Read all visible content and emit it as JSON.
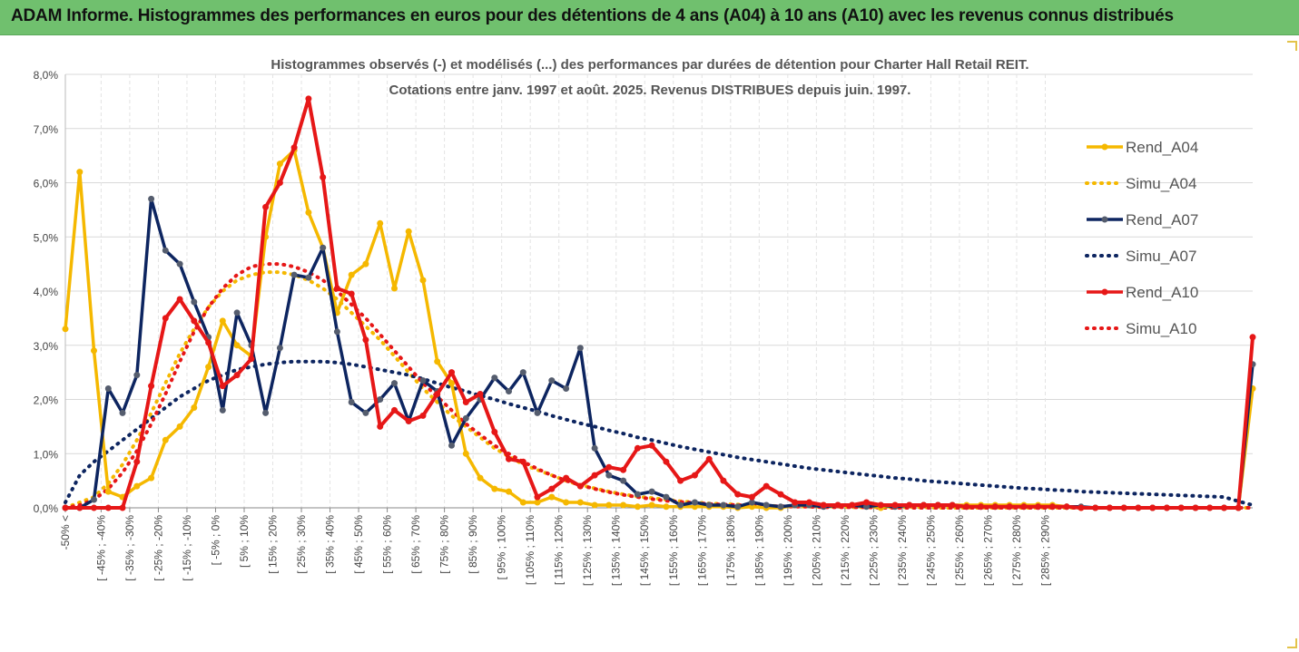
{
  "banner": {
    "title": "ADAM Informe. Histogrammes des performances en euros pour des détentions de 4 ans (A04) à 10 ans (A10) avec les revenus connus distribués",
    "color": "#70c06e"
  },
  "chart_data": {
    "type": "line",
    "title": "Histogrammes observés (-) et modélisés (...) des performances par durées de détention pour Charter Hall Retail REIT.",
    "subtitle": "Cotations entre janv. 1997 et août. 2025. Revenus DISTRIBUES depuis juin. 1997.",
    "ylim": [
      0,
      8
    ],
    "yticks": [
      "0,0%",
      "1,0%",
      "2,0%",
      "3,0%",
      "4,0%",
      "5,0%",
      "6,0%",
      "7,0%",
      "8,0%"
    ],
    "xtick_labels": [
      "-50% <",
      "[ -45% ; -40%",
      "[ -35% ; -30%",
      "[ -25% ; -20%",
      "[ -15% ; -10%",
      "[ -5% ; 0%",
      "[ 5% ; 10%",
      "[ 15% ; 20%",
      "[ 25% ; 30%",
      "[ 35% ; 40%",
      "[ 45% ; 50%",
      "[ 55% ; 60%",
      "[ 65% ; 70%",
      "[ 75% ; 80%",
      "[ 85% ; 90%",
      "[ 95% ; 100%",
      "[ 105% ; 110%",
      "[ 115% ; 120%",
      "[ 125% ; 130%",
      "[ 135% ; 140%",
      "[ 145% ; 150%",
      "[ 155% ; 160%",
      "[ 165% ; 170%",
      "[ 175% ; 180%",
      "[ 185% ; 190%",
      "[ 195% ; 200%",
      "[ 205% ; 210%",
      "[ 215% ; 220%",
      "[ 225% ; 230%",
      "[ 235% ; 240%",
      "[ 245% ; 250%",
      "[ 255% ; 260%",
      "[ 265% ; 270%",
      "[ 275% ; 280%",
      "[ 285% ; 290%"
    ],
    "grid": true,
    "legend_position": "right",
    "series": [
      {
        "name": "Rend_A04",
        "style": "solid",
        "color": "#f5b800",
        "values": [
          3.3,
          6.2,
          2.9,
          0.3,
          0.2,
          0.4,
          0.55,
          1.25,
          1.5,
          1.85,
          2.6,
          3.45,
          3.0,
          2.8,
          5.0,
          6.35,
          6.6,
          5.45,
          4.8,
          3.6,
          4.3,
          4.5,
          5.25,
          4.05,
          5.1,
          4.2,
          2.7,
          2.3,
          1.0,
          0.55,
          0.35,
          0.3,
          0.1,
          0.1,
          0.2,
          0.1,
          0.1,
          0.05,
          0.05,
          0.05,
          0.02,
          0.05,
          0.02,
          0.02,
          0.02,
          0.02,
          0.02,
          0.0,
          0.02,
          0.0,
          0.0,
          0.05,
          0.05,
          0.05,
          0.05,
          0.05,
          0.05,
          0.0,
          0.05,
          0.05,
          0.05,
          0.05,
          0.05,
          0.05,
          0.05,
          0.05,
          0.05,
          0.05,
          0.05,
          0.05,
          0.02,
          0.0,
          0.0,
          0.0,
          0.0,
          0.0,
          0.0,
          0.0,
          0.0,
          0.0,
          0.0,
          0.0,
          0.0,
          2.2
        ]
      },
      {
        "name": "Simu_A04",
        "style": "dotted",
        "color": "#f5b800",
        "values": [
          0.0,
          0.1,
          0.2,
          0.45,
          0.8,
          1.25,
          1.75,
          2.3,
          2.85,
          3.3,
          3.7,
          4.0,
          4.2,
          4.3,
          4.35,
          4.35,
          4.3,
          4.2,
          4.05,
          3.85,
          3.6,
          3.35,
          3.1,
          2.8,
          2.5,
          2.2,
          1.95,
          1.7,
          1.5,
          1.3,
          1.1,
          0.95,
          0.8,
          0.7,
          0.6,
          0.5,
          0.42,
          0.36,
          0.3,
          0.25,
          0.21,
          0.18,
          0.15,
          0.12,
          0.1,
          0.08,
          0.07,
          0.06,
          0.05,
          0.04,
          0.03,
          0.03,
          0.02,
          0.02,
          0.02,
          0.01,
          0.01,
          0.01,
          0.01,
          0.01,
          0.01,
          0.0,
          0.0,
          0.0,
          0.0,
          0.0,
          0.0,
          0.0,
          0.0,
          0.0,
          0.0,
          0.0,
          0.0,
          0.0,
          0.0,
          0.0,
          0.0,
          0.0,
          0.0,
          0.0,
          0.0,
          0.0,
          0.0,
          0.0
        ]
      },
      {
        "name": "Rend_A07",
        "style": "solid",
        "color": "#0d2560",
        "values": [
          0.0,
          0.0,
          0.15,
          2.2,
          1.75,
          2.45,
          5.7,
          4.75,
          4.5,
          3.8,
          3.15,
          1.8,
          3.6,
          3.0,
          1.75,
          2.95,
          4.3,
          4.25,
          4.8,
          3.25,
          1.95,
          1.75,
          2.0,
          2.3,
          1.6,
          2.35,
          2.15,
          1.15,
          1.65,
          2.0,
          2.4,
          2.15,
          2.5,
          1.75,
          2.35,
          2.2,
          2.95,
          1.1,
          0.6,
          0.5,
          0.25,
          0.3,
          0.2,
          0.05,
          0.1,
          0.05,
          0.05,
          0.02,
          0.1,
          0.05,
          0.02,
          0.05,
          0.05,
          0.02,
          0.05,
          0.05,
          0.02,
          0.05,
          0.02,
          0.05,
          0.05,
          0.05,
          0.05,
          0.02,
          0.02,
          0.02,
          0.02,
          0.02,
          0.02,
          0.02,
          0.02,
          0.02,
          0.0,
          0.0,
          0.0,
          0.0,
          0.0,
          0.0,
          0.0,
          0.0,
          0.0,
          0.0,
          0.0,
          2.65
        ]
      },
      {
        "name": "Simu_A07",
        "style": "dotted",
        "color": "#0d2560",
        "values": [
          0.1,
          0.6,
          0.85,
          1.05,
          1.25,
          1.45,
          1.65,
          1.85,
          2.05,
          2.2,
          2.35,
          2.45,
          2.55,
          2.6,
          2.65,
          2.68,
          2.7,
          2.7,
          2.7,
          2.68,
          2.65,
          2.6,
          2.55,
          2.5,
          2.45,
          2.38,
          2.3,
          2.22,
          2.15,
          2.07,
          2.0,
          1.92,
          1.85,
          1.78,
          1.7,
          1.63,
          1.56,
          1.5,
          1.43,
          1.37,
          1.3,
          1.25,
          1.19,
          1.13,
          1.08,
          1.03,
          0.98,
          0.93,
          0.89,
          0.85,
          0.81,
          0.77,
          0.73,
          0.7,
          0.67,
          0.64,
          0.61,
          0.58,
          0.55,
          0.53,
          0.5,
          0.48,
          0.46,
          0.44,
          0.42,
          0.4,
          0.38,
          0.36,
          0.35,
          0.33,
          0.32,
          0.3,
          0.29,
          0.28,
          0.27,
          0.26,
          0.25,
          0.24,
          0.23,
          0.22,
          0.21,
          0.2,
          0.12,
          0.05
        ]
      },
      {
        "name": "Rend_A10",
        "style": "solid",
        "color": "#e61717",
        "values": [
          0.0,
          0.0,
          0.0,
          0.0,
          0.0,
          0.85,
          2.25,
          3.5,
          3.85,
          3.45,
          3.05,
          2.25,
          2.45,
          2.75,
          5.55,
          6.0,
          6.65,
          7.55,
          6.1,
          4.05,
          3.95,
          3.1,
          1.5,
          1.8,
          1.6,
          1.7,
          2.1,
          2.5,
          1.95,
          2.1,
          1.4,
          0.9,
          0.85,
          0.2,
          0.35,
          0.55,
          0.4,
          0.6,
          0.75,
          0.7,
          1.1,
          1.15,
          0.85,
          0.5,
          0.6,
          0.9,
          0.5,
          0.25,
          0.2,
          0.4,
          0.25,
          0.1,
          0.1,
          0.05,
          0.05,
          0.05,
          0.1,
          0.05,
          0.05,
          0.05,
          0.05,
          0.05,
          0.05,
          0.02,
          0.02,
          0.02,
          0.02,
          0.02,
          0.02,
          0.02,
          0.02,
          0.0,
          0.0,
          0.0,
          0.0,
          0.0,
          0.0,
          0.0,
          0.0,
          0.0,
          0.0,
          0.0,
          0.0,
          3.15
        ]
      },
      {
        "name": "Simu_A10",
        "style": "dotted",
        "color": "#e61717",
        "values": [
          0.0,
          0.05,
          0.15,
          0.35,
          0.65,
          1.05,
          1.55,
          2.1,
          2.7,
          3.25,
          3.7,
          4.05,
          4.3,
          4.45,
          4.5,
          4.5,
          4.45,
          4.35,
          4.2,
          4.0,
          3.75,
          3.5,
          3.2,
          2.9,
          2.6,
          2.3,
          2.05,
          1.8,
          1.55,
          1.35,
          1.15,
          1.0,
          0.85,
          0.72,
          0.6,
          0.5,
          0.42,
          0.35,
          0.29,
          0.24,
          0.2,
          0.16,
          0.13,
          0.11,
          0.09,
          0.07,
          0.06,
          0.05,
          0.04,
          0.03,
          0.03,
          0.02,
          0.02,
          0.01,
          0.01,
          0.01,
          0.01,
          0.0,
          0.0,
          0.0,
          0.0,
          0.0,
          0.0,
          0.0,
          0.0,
          0.0,
          0.0,
          0.0,
          0.0,
          0.0,
          0.0,
          0.0,
          0.0,
          0.0,
          0.0,
          0.0,
          0.0,
          0.0,
          0.0,
          0.0,
          0.0,
          0.0,
          0.0,
          0.0
        ]
      }
    ]
  }
}
